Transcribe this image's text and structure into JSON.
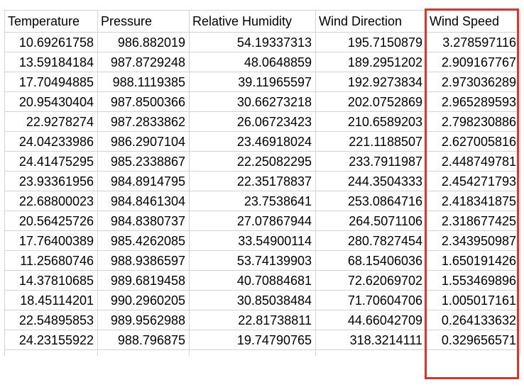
{
  "spreadsheet": {
    "columns": [
      "Temperature",
      "Pressure",
      "Relative Humidity",
      "Wind Direction",
      "Wind Speed"
    ],
    "rows": [
      [
        "10.69261758",
        "986.882019",
        "54.19337313",
        "195.7150879",
        "3.278597116"
      ],
      [
        "13.59184184",
        "987.8729248",
        "48.0648859",
        "189.2951202",
        "2.909167767"
      ],
      [
        "17.70494885",
        "988.1119385",
        "39.11965597",
        "192.9273834",
        "2.973036289"
      ],
      [
        "20.95430404",
        "987.8500366",
        "30.66273218",
        "202.0752869",
        "2.965289593"
      ],
      [
        "22.9278274",
        "987.2833862",
        "26.06723423",
        "210.6589203",
        "2.798230886"
      ],
      [
        "24.04233986",
        "986.2907104",
        "23.46918024",
        "221.1188507",
        "2.627005816"
      ],
      [
        "24.41475295",
        "985.2338867",
        "22.25082295",
        "233.7911987",
        "2.448749781"
      ],
      [
        "23.93361956",
        "984.8914795",
        "22.35178837",
        "244.3504333",
        "2.454271793"
      ],
      [
        "22.68800023",
        "984.8461304",
        "23.7538641",
        "253.0864716",
        "2.418341875"
      ],
      [
        "20.56425726",
        "984.8380737",
        "27.07867944",
        "264.5071106",
        "2.318677425"
      ],
      [
        "17.76400389",
        "985.4262085",
        "33.54900114",
        "280.7827454",
        "2.343950987"
      ],
      [
        "11.25680746",
        "988.9386597",
        "53.74139903",
        "68.15406036",
        "1.650191426"
      ],
      [
        "14.37810685",
        "989.6819458",
        "40.70884681",
        "72.62069702",
        "1.553469896"
      ],
      [
        "18.45114201",
        "990.2960205",
        "30.85038484",
        "71.70604706",
        "1.005017161"
      ],
      [
        "22.54895853",
        "989.9562988",
        "22.81738811",
        "44.66042709",
        "0.264133632"
      ],
      [
        "24.23155922",
        "988.796875",
        "19.74790765",
        "318.3214111",
        "0.329656571"
      ]
    ],
    "highlight_color": "#e0312b",
    "highlighted_column": "Wind Speed"
  }
}
